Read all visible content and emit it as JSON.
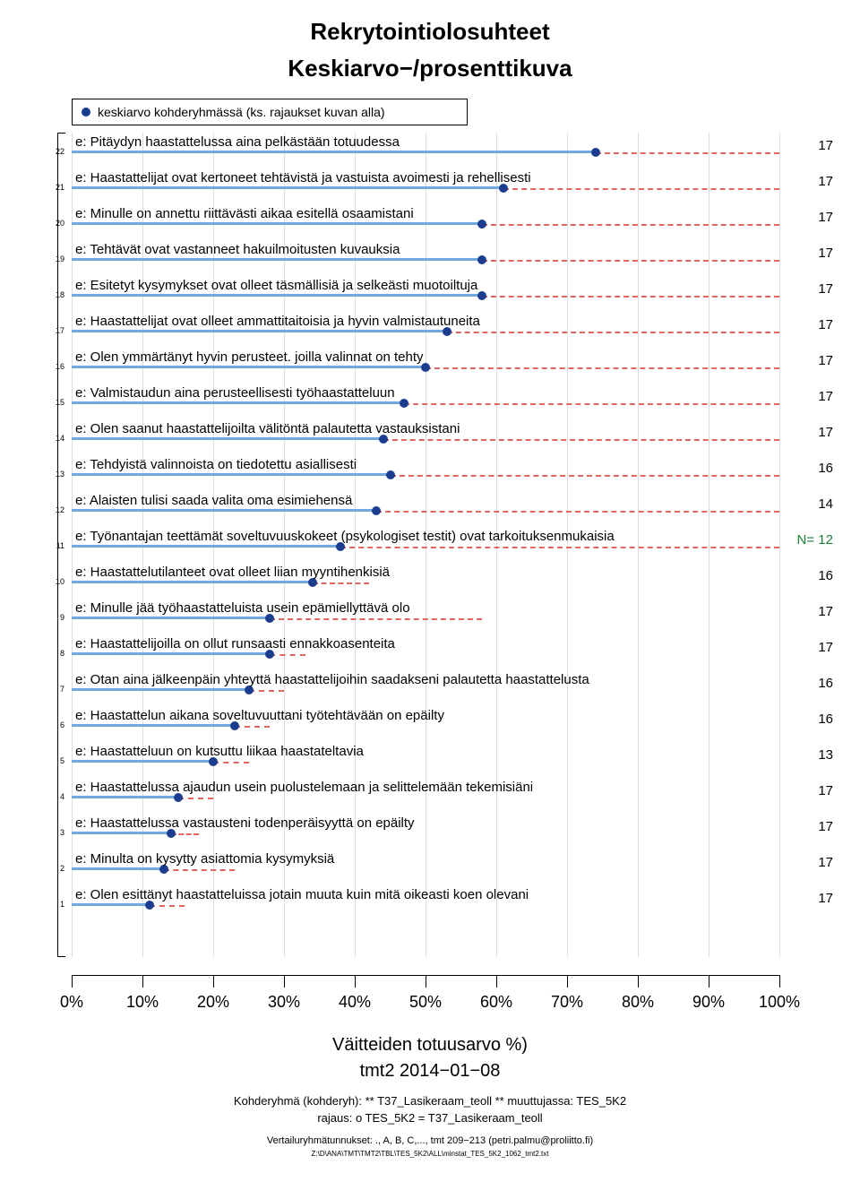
{
  "title": "Rekrytointiolosuhteet",
  "subtitle": "Keskiarvo−/prosenttikuva",
  "legend": "keskiarvo kohderyhmässä (ks. rajaukset kuvan alla)",
  "chart": {
    "type": "dot-bar-horizontal",
    "xlim": [
      0,
      100
    ],
    "xticks": [
      0,
      10,
      20,
      30,
      40,
      50,
      60,
      70,
      80,
      90,
      100
    ],
    "xticklabels": [
      "0%",
      "10%",
      "20%",
      "30%",
      "40%",
      "50%",
      "60%",
      "70%",
      "80%",
      "90%",
      "100%"
    ],
    "bar_solid_color": "#6fa8dc",
    "bar_dashed_color": "#e06666",
    "dot_color": "#1a3d8f",
    "background_color": "#ffffff",
    "label_fontsize": 15,
    "rows": [
      {
        "idx": 22,
        "label": "e: Pitäydyn haastattelussa aina pelkästään totuudessa",
        "solid": 74,
        "dashed_from": 74,
        "dashed_to": 100,
        "n": "17"
      },
      {
        "idx": 21,
        "label": "e: Haastattelijat ovat kertoneet tehtävistä ja vastuista avoimesti ja rehellisesti",
        "solid": 61,
        "dashed_from": 61,
        "dashed_to": 100,
        "n": "17"
      },
      {
        "idx": 20,
        "label": "e: Minulle on annettu riittävästi aikaa esitellä osaamistani",
        "solid": 58,
        "dashed_from": 58,
        "dashed_to": 100,
        "n": "17"
      },
      {
        "idx": 19,
        "label": "e: Tehtävät ovat vastanneet hakuilmoitusten kuvauksia",
        "solid": 58,
        "dashed_from": 58,
        "dashed_to": 100,
        "n": "17"
      },
      {
        "idx": 18,
        "label": "e: Esitetyt kysymykset ovat olleet täsmällisiä ja selkeästi muotoiltuja",
        "solid": 58,
        "dashed_from": 58,
        "dashed_to": 100,
        "n": "17"
      },
      {
        "idx": 17,
        "label": "e: Haastattelijat ovat olleet ammattitaitoisia ja hyvin valmistautuneita",
        "solid": 53,
        "dashed_from": 53,
        "dashed_to": 100,
        "n": "17"
      },
      {
        "idx": 16,
        "label": "e: Olen ymmärtänyt hyvin perusteet. joilla valinnat on tehty",
        "solid": 50,
        "dashed_from": 50,
        "dashed_to": 100,
        "n": "17"
      },
      {
        "idx": 15,
        "label": "e: Valmistaudun aina perusteellisesti työhaastatteluun",
        "solid": 47,
        "dashed_from": 47,
        "dashed_to": 100,
        "n": "17"
      },
      {
        "idx": 14,
        "label": "e: Olen saanut haastattelijoilta välitöntä palautetta vastauksistani",
        "solid": 44,
        "dashed_from": 44,
        "dashed_to": 100,
        "n": "17"
      },
      {
        "idx": 13,
        "label": "e: Tehdyistä valinnoista on tiedotettu asiallisesti",
        "solid": 45,
        "dashed_from": 45,
        "dashed_to": 100,
        "n": "16"
      },
      {
        "idx": 12,
        "label": "e: Alaisten tulisi saada valita oma esimiehensä",
        "solid": 43,
        "dashed_from": 43,
        "dashed_to": 100,
        "n": "14"
      },
      {
        "idx": 11,
        "label": "e: Työnantajan teettämät soveltuvuuskokeet (psykologiset testit) ovat tarkoituksenmukaisia",
        "solid": 38,
        "dashed_from": 38,
        "dashed_to": 100,
        "n": "N= 12",
        "green": true
      },
      {
        "idx": 10,
        "label": "e: Haastattelutilanteet ovat olleet liian myyntihenkisiä",
        "solid": 34,
        "dashed_from": 34,
        "dashed_to": 42,
        "n": "16"
      },
      {
        "idx": 9,
        "label": "e: Minulle jää työhaastatteluista usein epämiellyttävä olo",
        "solid": 28,
        "dashed_from": 28,
        "dashed_to": 58,
        "n": "17"
      },
      {
        "idx": 8,
        "label": "e: Haastattelijoilla on ollut runsaasti ennakkoasenteita",
        "solid": 28,
        "dashed_from": 28,
        "dashed_to": 33,
        "n": "17"
      },
      {
        "idx": 7,
        "label": "e: Otan aina jälkeenpäin yhteyttä haastattelijoihin saadakseni palautetta haastattelusta",
        "solid": 25,
        "dashed_from": 25,
        "dashed_to": 30,
        "n": "16"
      },
      {
        "idx": 6,
        "label": "e: Haastattelun aikana soveltuvuuttani työtehtävään on epäilty",
        "solid": 23,
        "dashed_from": 23,
        "dashed_to": 28,
        "n": "16"
      },
      {
        "idx": 5,
        "label": "e: Haastatteluun on kutsuttu liikaa haastateltavia",
        "solid": 20,
        "dashed_from": 20,
        "dashed_to": 25,
        "n": "13"
      },
      {
        "idx": 4,
        "label": "e: Haastattelussa ajaudun usein puolustelemaan ja selittelemään tekemisiäni",
        "solid": 15,
        "dashed_from": 15,
        "dashed_to": 20,
        "n": "17"
      },
      {
        "idx": 3,
        "label": "e: Haastattelussa vastausteni todenperäisyyttä on epäilty",
        "solid": 14,
        "dashed_from": 14,
        "dashed_to": 18,
        "n": "17"
      },
      {
        "idx": 2,
        "label": "e: Minulta on kysytty asiattomia kysymyksiä",
        "solid": 13,
        "dashed_from": 13,
        "dashed_to": 23,
        "n": "17"
      },
      {
        "idx": 1,
        "label": "e: Olen esittänyt haastatteluissa jotain muuta kuin mitä oikeasti koen olevani",
        "solid": 11,
        "dashed_from": 11,
        "dashed_to": 16,
        "n": "17"
      }
    ]
  },
  "footer": {
    "line1": "Väitteiden totuusarvo %)",
    "line2": "tmt2 2014−01−08",
    "line3": "Kohderyhmä (kohderyh): ** T37_Lasikeraam_teoll ** muuttujassa: TES_5K2",
    "line4": "rajaus: o TES_5K2 = T37_Lasikeraam_teoll",
    "line5": "Vertailuryhmätunnukset: ., A, B, C,..., tmt 209−213 (petri.palmu@proliitto.fi)",
    "line6": "Z:\\D\\ANA\\TMT\\TMT2\\TBL\\TES_5K2\\ALL\\minstat_TES_5K2_1062_tmt2.txt"
  }
}
